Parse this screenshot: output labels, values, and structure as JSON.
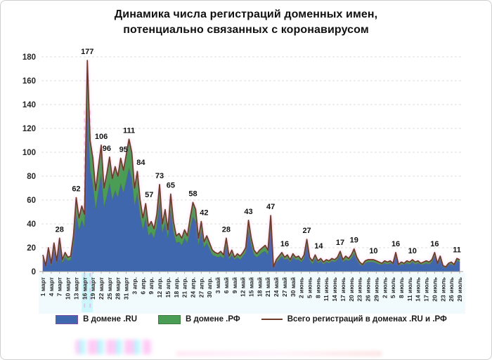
{
  "title": {
    "line1": "Динамика числа регистраций доменных имен,",
    "line2": "потенциально связанных с коронавирусом"
  },
  "colors": {
    "ru_fill": "#3f67ae",
    "ru_stroke": "#7a4fa0",
    "rf_fill": "#4a9d55",
    "rf_stroke": "#3c7a3e",
    "total_line": "#6e3b28",
    "grid": "#dcdcdc",
    "axis": "#9f9f9f",
    "tick": "#b0b0b0",
    "label_text": "#111111",
    "axis_text": "#262626",
    "band_tint": "#dff7fb",
    "artifact_pink": "#ff5fd0",
    "artifact_cyan": "#aef4f8"
  },
  "chart_data": {
    "type": "area",
    "stacked": true,
    "title": "Динамика числа регистраций доменных имен, потенциально связанных с коронавирусом",
    "xlabel": "",
    "ylabel": "",
    "ylim": [
      0,
      180
    ],
    "y_ticks": [
      0,
      20,
      40,
      60,
      80,
      100,
      120,
      140,
      160,
      180
    ],
    "grid": "horizontal-dashed",
    "legend_position": "bottom",
    "x_tick_every_days": 3,
    "x_tick_labels": [
      "1 март",
      "4 март",
      "7 март",
      "10 март",
      "13 март",
      "16 март",
      "19 март",
      "22 март",
      "25 март",
      "28 март",
      "31 март",
      "3 апр.",
      "6 апр.",
      "9 апр.",
      "12 апр.",
      "15 апр.",
      "18 апр.",
      "21 апр.",
      "24 апр.",
      "27 апр.",
      "30 апр.",
      "3 май",
      "6 май",
      "9 май",
      "12 май",
      "15 май",
      "18 май",
      "21 май",
      "24 май",
      "27 май",
      "30 май",
      "2 июнь",
      "5 июнь",
      "8 июнь",
      "11 июнь",
      "14 июнь",
      "17 июнь",
      "20 июнь",
      "23 июнь",
      "26 июнь",
      "29 июнь",
      "2 июль",
      "5 июль",
      "8 июль",
      "11 июль",
      "14 июль",
      "17 июль",
      "20 июль",
      "23 июль",
      "26 июль",
      "29 июль"
    ],
    "series": [
      {
        "name": "В домене .RU",
        "type": "area",
        "color": "#3f67ae",
        "values": [
          10,
          4,
          15,
          5,
          18,
          7,
          21,
          7,
          12,
          9,
          10,
          23,
          48,
          35,
          43,
          37,
          137,
          85,
          73,
          52,
          68,
          82,
          54,
          63,
          74,
          60,
          68,
          62,
          74,
          66,
          76,
          87,
          78,
          55,
          66,
          47,
          35,
          45,
          30,
          33,
          28,
          38,
          58,
          32,
          41,
          28,
          52,
          33,
          24,
          25,
          22,
          28,
          24,
          36,
          46,
          42,
          22,
          34,
          20,
          24,
          19,
          14,
          13,
          12,
          13,
          11,
          22,
          10,
          14,
          10,
          12,
          10,
          13,
          16,
          35,
          22,
          14,
          12,
          14,
          16,
          17,
          14,
          38,
          3,
          8,
          10,
          13,
          10,
          11,
          8,
          12,
          10,
          10,
          8,
          11,
          22,
          10,
          6,
          11,
          7,
          9,
          6,
          8,
          7,
          9,
          8,
          10,
          14,
          8,
          10,
          9,
          11,
          15,
          10,
          6,
          5,
          7,
          8,
          8,
          8,
          7,
          6,
          6,
          7,
          6,
          7,
          6,
          13,
          5,
          6,
          6,
          7,
          6,
          8,
          6,
          7,
          6,
          6,
          7,
          6,
          8,
          13,
          6,
          10,
          4,
          3,
          6,
          6,
          5,
          9,
          8
        ]
      },
      {
        "name": "В домене .РФ",
        "type": "area-stacked",
        "color": "#4a9d55",
        "values": [
          4,
          1,
          5,
          2,
          6,
          2,
          7,
          3,
          4,
          3,
          3,
          7,
          14,
          10,
          12,
          11,
          40,
          25,
          22,
          16,
          20,
          24,
          16,
          19,
          22,
          18,
          20,
          18,
          21,
          19,
          22,
          24,
          22,
          15,
          18,
          13,
          10,
          12,
          8,
          9,
          8,
          10,
          15,
          8,
          11,
          7,
          13,
          9,
          6,
          7,
          6,
          7,
          6,
          9,
          12,
          10,
          6,
          8,
          5,
          6,
          5,
          4,
          3,
          3,
          4,
          3,
          6,
          3,
          4,
          2,
          3,
          3,
          3,
          4,
          8,
          6,
          4,
          3,
          4,
          4,
          5,
          4,
          9,
          1,
          2,
          3,
          3,
          2,
          3,
          2,
          3,
          2,
          3,
          2,
          3,
          5,
          2,
          3,
          3,
          2,
          2,
          2,
          2,
          2,
          2,
          2,
          2,
          3,
          2,
          3,
          2,
          3,
          4,
          2,
          2,
          1,
          2,
          2,
          2,
          2,
          2,
          2,
          1,
          2,
          2,
          2,
          1,
          3,
          1,
          2,
          1,
          2,
          2,
          2,
          2,
          2,
          1,
          2,
          2,
          2,
          2,
          3,
          1,
          3,
          1,
          1,
          1,
          2,
          1,
          2,
          2
        ]
      },
      {
        "name": "Всего регистраций в доменах .RU и .РФ",
        "type": "line",
        "color": "#6e3b28",
        "values": [
          14,
          5,
          20,
          7,
          24,
          9,
          28,
          10,
          16,
          12,
          13,
          30,
          62,
          45,
          55,
          48,
          177,
          110,
          95,
          68,
          88,
          106,
          70,
          82,
          96,
          78,
          88,
          80,
          95,
          85,
          98,
          111,
          100,
          70,
          84,
          60,
          45,
          57,
          38,
          42,
          36,
          48,
          73,
          40,
          52,
          35,
          65,
          42,
          30,
          32,
          28,
          35,
          30,
          45,
          58,
          52,
          28,
          42,
          25,
          30,
          24,
          18,
          16,
          15,
          17,
          14,
          28,
          13,
          18,
          12,
          15,
          13,
          16,
          20,
          43,
          28,
          18,
          15,
          18,
          20,
          22,
          18,
          47,
          4,
          10,
          13,
          16,
          12,
          14,
          10,
          15,
          12,
          13,
          10,
          14,
          27,
          12,
          9,
          14,
          9,
          11,
          8,
          10,
          9,
          11,
          10,
          12,
          17,
          10,
          13,
          11,
          14,
          19,
          12,
          8,
          6,
          9,
          10,
          10,
          10,
          9,
          8,
          7,
          9,
          8,
          9,
          7,
          16,
          6,
          8,
          7,
          9,
          8,
          10,
          8,
          9,
          7,
          8,
          9,
          8,
          10,
          16,
          7,
          13,
          5,
          4,
          7,
          8,
          6,
          11,
          10
        ]
      }
    ],
    "annotations": [
      {
        "day": 6,
        "value": 28
      },
      {
        "day": 12,
        "value": 62
      },
      {
        "day": 16,
        "value": 177
      },
      {
        "day": 21,
        "value": 106
      },
      {
        "day": 24,
        "value": 96,
        "dx": -4
      },
      {
        "day": 28,
        "value": 95,
        "dx": 4
      },
      {
        "day": 31,
        "value": 111
      },
      {
        "day": 34,
        "value": 84,
        "dx": 5
      },
      {
        "day": 37,
        "value": 57,
        "dx": 5
      },
      {
        "day": 42,
        "value": 73
      },
      {
        "day": 46,
        "value": 65
      },
      {
        "day": 54,
        "value": 58
      },
      {
        "day": 57,
        "value": 42,
        "dx": 4
      },
      {
        "day": 66,
        "value": 28
      },
      {
        "day": 74,
        "value": 43
      },
      {
        "day": 82,
        "value": 47
      },
      {
        "day": 86,
        "value": 16,
        "dx": 4
      },
      {
        "day": 95,
        "value": 27
      },
      {
        "day": 98,
        "value": 14,
        "dx": 5
      },
      {
        "day": 107,
        "value": 17
      },
      {
        "day": 112,
        "value": 19
      },
      {
        "day": 119,
        "value": 10
      },
      {
        "day": 127,
        "value": 16
      },
      {
        "day": 133,
        "value": 10
      },
      {
        "day": 141,
        "value": 16
      },
      {
        "day": 149,
        "value": 11
      }
    ]
  }
}
